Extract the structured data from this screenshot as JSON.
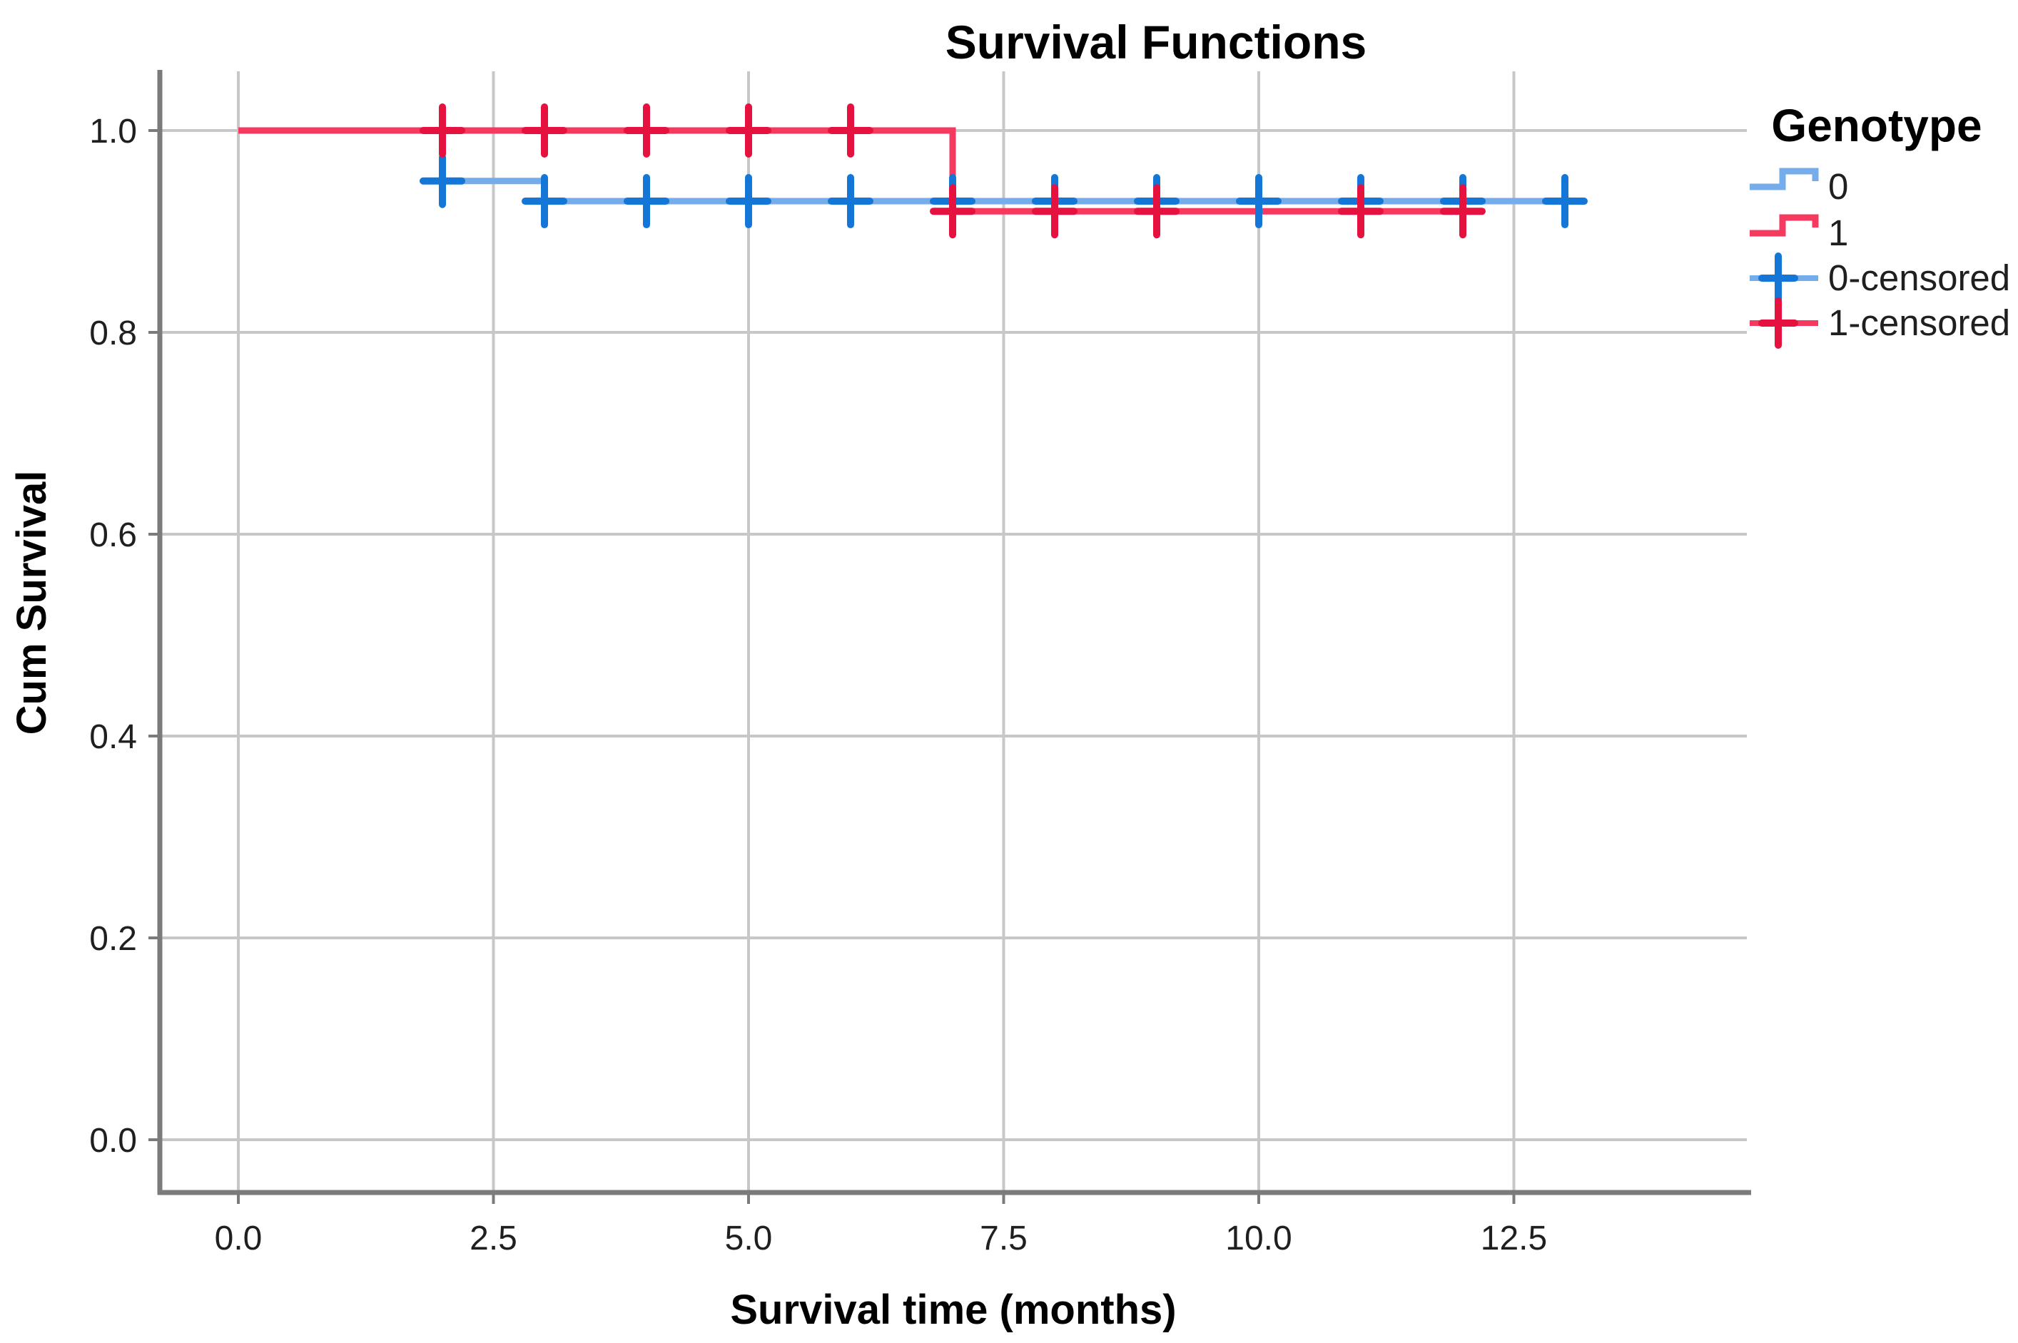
{
  "title": "Survival Functions",
  "colors": {
    "background": "#ffffff",
    "gridline": "#c7c7c7",
    "axis_line": "#7b7b7b",
    "blue_line": "#75ADEA",
    "blue_marker": "#1477D8",
    "red_line": "#F5395F",
    "red_marker": "#E5123F"
  },
  "chart_data": {
    "type": "line",
    "subtype": "kaplan_meier_step",
    "title": "Survival Functions",
    "xlabel": "Survival time (months)",
    "ylabel": "Cum Survival",
    "grid": true,
    "legend_position": "right",
    "xlim": [
      -0.8,
      14.8
    ],
    "ylim": [
      -0.05,
      1.06
    ],
    "x_ticks": {
      "labels": [
        "0.0",
        "2.5",
        "5.0",
        "7.5",
        "10.0",
        "12.5"
      ],
      "values": [
        0,
        2.5,
        5,
        7.5,
        10,
        12.5
      ]
    },
    "y_ticks": {
      "labels": [
        "1.0",
        "0.8",
        "0.6",
        "0.4",
        "0.2",
        "0.0"
      ],
      "values": [
        1.0,
        0.8,
        0.6,
        0.4,
        0.2,
        0.0
      ]
    },
    "series": [
      {
        "name": "0",
        "group": "Genotype 0",
        "line_color": "#75ADEA",
        "marker_color": "#1477D8",
        "steps": [
          [
            0,
            1.0
          ],
          [
            2,
            0.95
          ],
          [
            3,
            0.93
          ],
          [
            13,
            0.93
          ]
        ],
        "censored": [
          [
            2,
            0.95
          ],
          [
            3,
            0.93
          ],
          [
            4,
            0.93
          ],
          [
            5,
            0.93
          ],
          [
            6,
            0.93
          ],
          [
            7,
            0.93
          ],
          [
            8,
            0.93
          ],
          [
            9,
            0.93
          ],
          [
            10,
            0.93
          ],
          [
            11,
            0.93
          ],
          [
            12,
            0.93
          ],
          [
            13,
            0.93
          ]
        ]
      },
      {
        "name": "1",
        "group": "Genotype 1",
        "line_color": "#F5395F",
        "marker_color": "#E5123F",
        "steps": [
          [
            0,
            1.0
          ],
          [
            7,
            0.92
          ],
          [
            12,
            0.92
          ]
        ],
        "censored": [
          [
            2,
            1.0
          ],
          [
            3,
            1.0
          ],
          [
            4,
            1.0
          ],
          [
            5,
            1.0
          ],
          [
            6,
            1.0
          ],
          [
            7,
            0.92
          ],
          [
            8,
            0.92
          ],
          [
            9,
            0.92
          ],
          [
            11,
            0.92
          ],
          [
            12,
            0.92
          ]
        ]
      }
    ]
  },
  "legend": {
    "title": "Genotype",
    "items": [
      {
        "label": "0",
        "kind": "step",
        "series": 0
      },
      {
        "label": "1",
        "kind": "step",
        "series": 1
      },
      {
        "label": "0-censored",
        "kind": "censor",
        "series": 0
      },
      {
        "label": "1-censored",
        "kind": "censor",
        "series": 1
      }
    ]
  }
}
